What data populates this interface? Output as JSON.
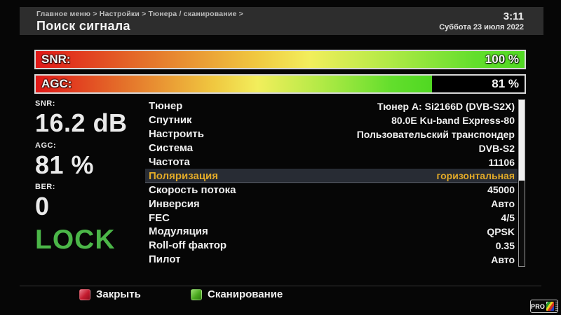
{
  "header": {
    "breadcrumb": "Главное меню > Настройки > Тюнера / сканирование >",
    "title": "Поиск сигнала",
    "time": "3:11",
    "date": "Суббота 23 июля 2022"
  },
  "signal_bars": [
    {
      "label": "SNR:",
      "value_text": "100 %",
      "percent": 100
    },
    {
      "label": "AGC:",
      "value_text": "81 %",
      "percent": 81
    }
  ],
  "stats": [
    {
      "label": "SNR:",
      "value": "16.2 dB"
    },
    {
      "label": "AGC:",
      "value": "81 %"
    },
    {
      "label": "BER:",
      "value": "0"
    }
  ],
  "lock_status": "LOCK",
  "settings": {
    "rows": [
      {
        "label": "Тюнер",
        "value": "Тюнер A: Si2166D (DVB-S2X)",
        "selected": false
      },
      {
        "label": "Спутник",
        "value": "80.0E Ku-band Express-80",
        "selected": false
      },
      {
        "label": "Настроить",
        "value": "Пользовательский транспондер",
        "selected": false
      },
      {
        "label": "Система",
        "value": "DVB-S2",
        "selected": false
      },
      {
        "label": "Частота",
        "value": "11106",
        "selected": false
      },
      {
        "label": "Поляризация",
        "value": "горизонтальная",
        "selected": true
      },
      {
        "label": "Скорость потока",
        "value": "45000",
        "selected": false
      },
      {
        "label": "Инверсия",
        "value": "Авто",
        "selected": false
      },
      {
        "label": "FEC",
        "value": "4/5",
        "selected": false
      },
      {
        "label": "Модуляция",
        "value": "QPSK",
        "selected": false
      },
      {
        "label": "Roll-off фактор",
        "value": "0.35",
        "selected": false
      },
      {
        "label": "Пилот",
        "value": "Авто",
        "selected": false
      }
    ],
    "scroll_thumb_percent": 48.5
  },
  "footer": {
    "buttons": [
      {
        "key_color": "#c41a2e",
        "label": "Закрыть"
      },
      {
        "key_color": "#4aa81e",
        "label": "Сканирование"
      }
    ],
    "logo_text": "PRO"
  },
  "colors": {
    "header_bg": "#2d2d2d",
    "bar_gradient_start": "#e01818",
    "bar_gradient_mid": "#f2ee5c",
    "bar_gradient_end": "#50d822",
    "lock_green": "#4bb648",
    "highlight_row_bg": "#282c34",
    "highlight_text": "#e2aa28"
  }
}
